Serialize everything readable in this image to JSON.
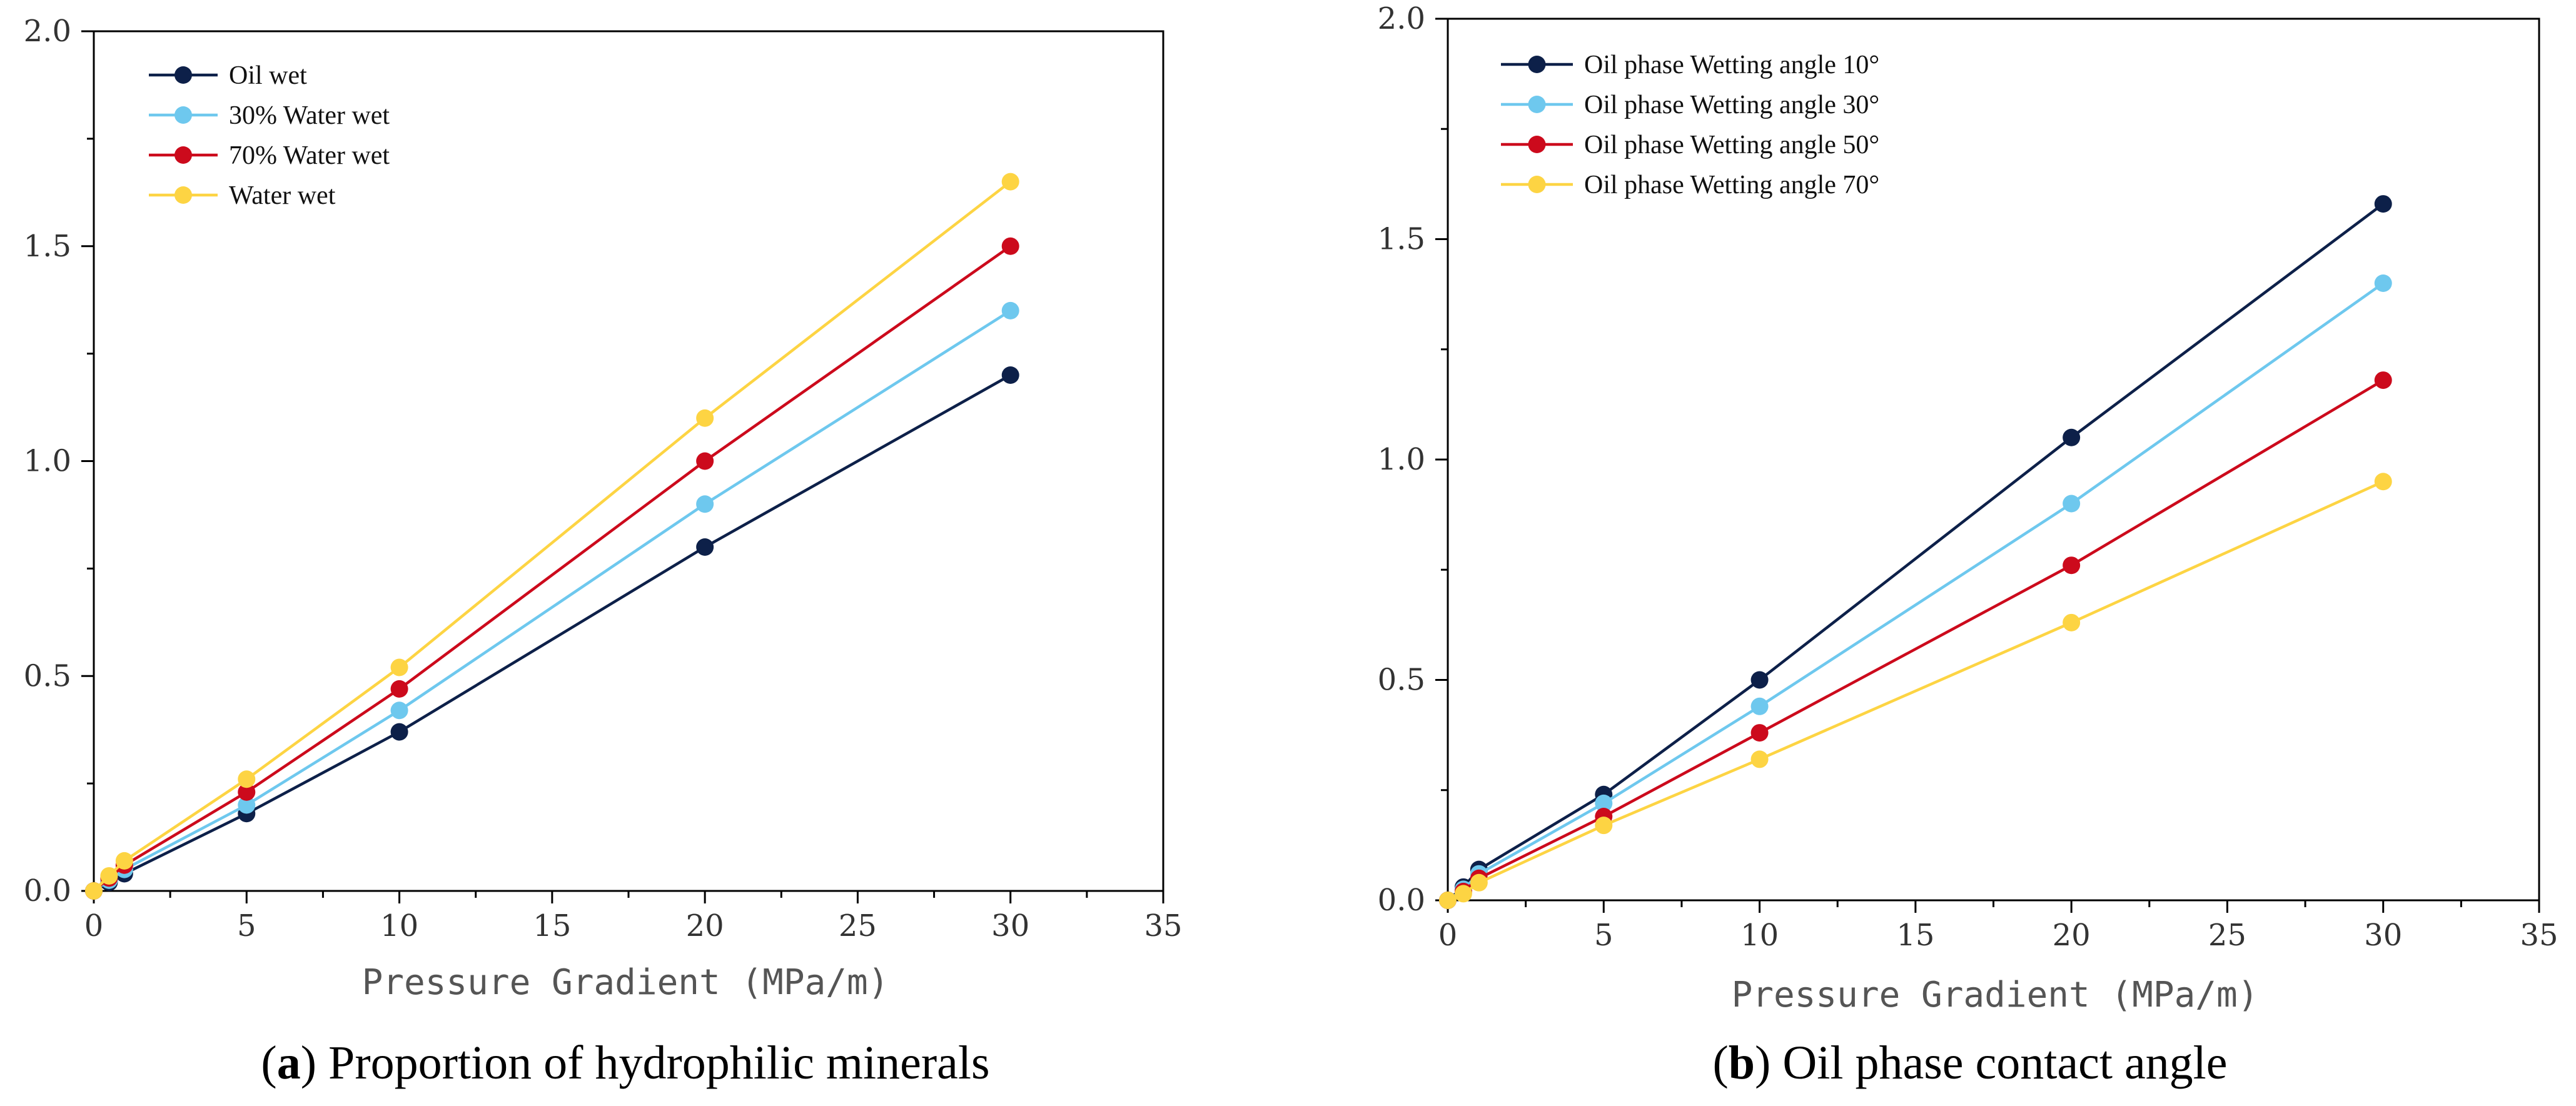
{
  "colors": {
    "navy": "#0d2049",
    "sky": "#6ec8ee",
    "red": "#cc0a1c",
    "yellow": "#fdd443"
  },
  "chart_data": [
    {
      "type": "line",
      "panel": "a",
      "caption": {
        "letter": "a",
        "text": "Proportion of hydrophilic minerals"
      },
      "xlabel": "Pressure Gradient (MPa/m)",
      "ylabel": "",
      "xlim": [
        0,
        35
      ],
      "ylim": [
        0,
        2.0
      ],
      "xticks": [
        "0",
        "5",
        "10",
        "15",
        "20",
        "25",
        "30",
        "35"
      ],
      "yticks": [
        "0.0",
        "0.5",
        "1.0",
        "1.5",
        "2.0"
      ],
      "legend_position": "top-left",
      "series": [
        {
          "name": "Oil wet",
          "color": "#0d2049",
          "x": [
            0,
            0.5,
            1,
            5,
            10,
            20,
            30
          ],
          "y": [
            0,
            0.02,
            0.04,
            0.18,
            0.37,
            0.8,
            1.2
          ]
        },
        {
          "name": "30% Water wet",
          "color": "#6ec8ee",
          "x": [
            0,
            0.5,
            1,
            5,
            10,
            20,
            30
          ],
          "y": [
            0,
            0.025,
            0.05,
            0.2,
            0.42,
            0.9,
            1.35
          ]
        },
        {
          "name": "70% Water wet",
          "color": "#cc0a1c",
          "x": [
            0,
            0.5,
            1,
            5,
            10,
            20,
            30
          ],
          "y": [
            0,
            0.03,
            0.06,
            0.23,
            0.47,
            1.0,
            1.5
          ]
        },
        {
          "name": "Water wet",
          "color": "#fdd443",
          "x": [
            0,
            0.5,
            1,
            5,
            10,
            20,
            30
          ],
          "y": [
            0,
            0.035,
            0.07,
            0.26,
            0.52,
            1.1,
            1.65
          ]
        }
      ]
    },
    {
      "type": "line",
      "panel": "b",
      "caption": {
        "letter": "b",
        "text": "Oil phase contact angle"
      },
      "xlabel": "Pressure Gradient (MPa/m)",
      "ylabel": "",
      "xlim": [
        0,
        35
      ],
      "ylim": [
        0,
        2.0
      ],
      "xticks": [
        "0",
        "5",
        "10",
        "15",
        "20",
        "25",
        "30",
        "35"
      ],
      "yticks": [
        "0.0",
        "0.5",
        "1.0",
        "1.5",
        "2.0"
      ],
      "legend_position": "top-left",
      "series": [
        {
          "name": "Oil phase Wetting angle 10°",
          "color": "#0d2049",
          "x": [
            0,
            0.5,
            1,
            5,
            10,
            20,
            30
          ],
          "y": [
            0,
            0.03,
            0.07,
            0.24,
            0.5,
            1.05,
            1.58
          ]
        },
        {
          "name": "Oil phase Wetting angle 30°",
          "color": "#6ec8ee",
          "x": [
            0,
            0.5,
            1,
            5,
            10,
            20,
            30
          ],
          "y": [
            0,
            0.025,
            0.06,
            0.22,
            0.44,
            0.9,
            1.4
          ]
        },
        {
          "name": "Oil phase Wetting angle 50°",
          "color": "#cc0a1c",
          "x": [
            0,
            0.5,
            1,
            5,
            10,
            20,
            30
          ],
          "y": [
            0,
            0.02,
            0.05,
            0.19,
            0.38,
            0.76,
            1.18
          ]
        },
        {
          "name": "Oil phase Wetting angle 70°",
          "color": "#fdd443",
          "x": [
            0,
            0.5,
            1,
            5,
            10,
            20,
            30
          ],
          "y": [
            0,
            0.015,
            0.04,
            0.17,
            0.32,
            0.63,
            0.95
          ]
        }
      ]
    }
  ]
}
